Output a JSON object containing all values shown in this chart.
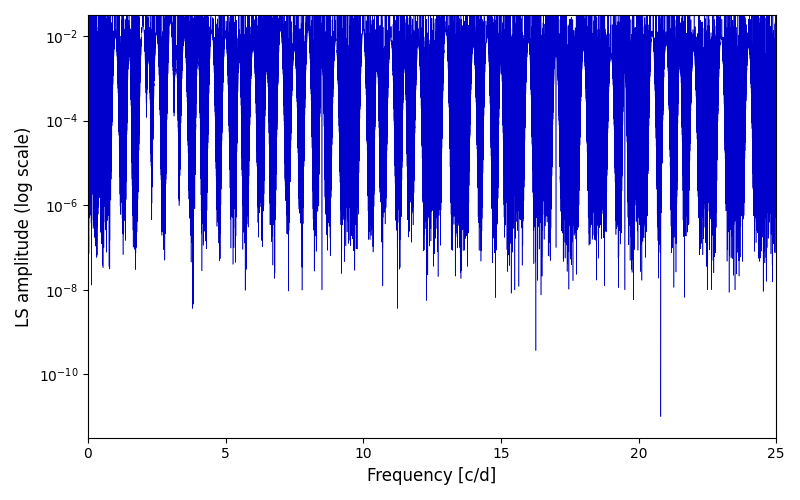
{
  "line_color": "#0000CC",
  "xlabel": "Frequency [c/d]",
  "ylabel": "LS amplitude (log scale)",
  "xlim": [
    0,
    25
  ],
  "ylim_log": [
    -11.5,
    -1.5
  ],
  "xticks": [
    0,
    5,
    10,
    15,
    20,
    25
  ],
  "figsize": [
    8.0,
    5.0
  ],
  "dpi": 100,
  "seed": 42,
  "n_points": 50000,
  "background_color": "#ffffff"
}
